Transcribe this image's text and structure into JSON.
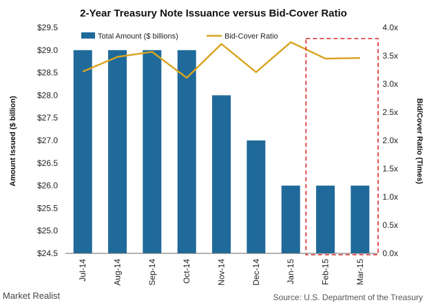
{
  "chart_data": {
    "type": "bar",
    "title": "2-Year Treasury Note Issuance versus Bid-Cover Ratio",
    "categories": [
      "Jul-14",
      "Aug-14",
      "Sep-14",
      "Oct-14",
      "Nov-14",
      "Dec-14",
      "Jan-15",
      "Feb-15",
      "Mar-15"
    ],
    "series": [
      {
        "name": "Total Amount ($ billions)",
        "type": "bar",
        "axis": "left",
        "color": "#1f6a9a",
        "values": [
          29.0,
          29.0,
          29.0,
          29.0,
          28.0,
          27.0,
          26.0,
          26.0,
          26.0
        ]
      },
      {
        "name": "Bid-Cover Ratio",
        "type": "line",
        "axis": "right",
        "color": "#d9a521",
        "values": [
          3.22,
          3.48,
          3.57,
          3.11,
          3.71,
          3.21,
          3.74,
          3.45,
          3.46
        ]
      }
    ],
    "ylabel": "Amount Issued ($ billion)",
    "ylabel_right": "Bid/Cover Ratio (Times)",
    "ylim": [
      24.5,
      29.5
    ],
    "ylim_right": [
      0.0,
      4.0
    ],
    "yticks": [
      "$24.5",
      "$25.0",
      "$25.5",
      "$26.0",
      "$26.5",
      "$27.0",
      "$27.5",
      "$28.0",
      "$28.5",
      "$29.0",
      "$29.5"
    ],
    "yticks_right": [
      "0.0x",
      "0.5x",
      "1.0x",
      "1.5x",
      "2.0x",
      "2.5x",
      "3.0x",
      "3.5x",
      "4.0x"
    ],
    "legend_position": "top",
    "grid": false,
    "highlight": {
      "categories": [
        "Feb-15",
        "Mar-15"
      ],
      "color": "#d62728",
      "style": "dashed"
    }
  },
  "footer": {
    "brand": "Market Realist",
    "source": "Source: U.S. Department of the Treasury"
  }
}
